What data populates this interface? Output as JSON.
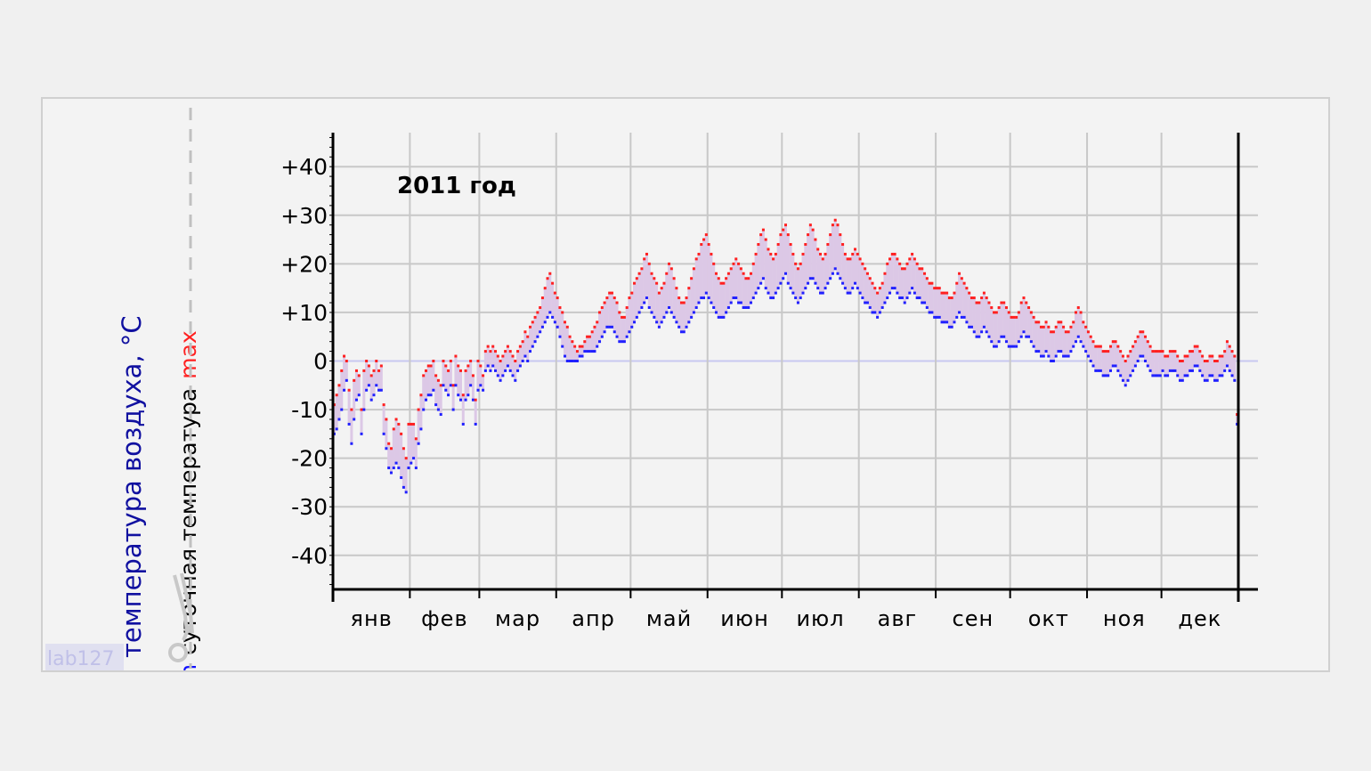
{
  "chart_data": {
    "type": "line",
    "title": "2011 год",
    "ylabel": "температура воздуха, °C",
    "ylabel_series_note": {
      "prefix": "суточная температура",
      "min_label": "min",
      "max_label": "max"
    },
    "ylim": [
      -47,
      47
    ],
    "yticks": [
      {
        "value": 40,
        "label": "+40"
      },
      {
        "value": 30,
        "label": "+30"
      },
      {
        "value": 20,
        "label": "+20"
      },
      {
        "value": 10,
        "label": "+10"
      },
      {
        "value": 0,
        "label": "0"
      },
      {
        "value": -10,
        "label": "-10"
      },
      {
        "value": -20,
        "label": "-20"
      },
      {
        "value": -30,
        "label": "-30"
      },
      {
        "value": -40,
        "label": "-40"
      }
    ],
    "months": [
      "янв",
      "фев",
      "мар",
      "апр",
      "май",
      "июн",
      "июл",
      "авг",
      "сен",
      "окт",
      "ноя",
      "дек"
    ],
    "month_lengths": [
      31,
      28,
      31,
      30,
      31,
      30,
      31,
      31,
      30,
      31,
      30,
      31
    ],
    "grid": true,
    "colors": {
      "max": "#ff2020",
      "min": "#2020ff",
      "band": "#dcc8e6",
      "grid": "#c8c8c8",
      "zero_line": "#c8c8f0"
    },
    "series": [
      {
        "name": "max",
        "daily": [
          -9,
          -7,
          -5,
          -2,
          1,
          0,
          -6,
          -10,
          -4,
          -2,
          -3,
          -10,
          -2,
          0,
          -1,
          -3,
          -2,
          0,
          -2,
          -1,
          -9,
          -12,
          -17,
          -18,
          -14,
          -12,
          -13,
          -15,
          -18,
          -20,
          -13,
          -13,
          -13,
          -16,
          -10,
          -7,
          -3,
          -2,
          -1,
          -1,
          0,
          -3,
          -4,
          -5,
          0,
          -1,
          -2,
          0,
          -5,
          1,
          -1,
          -2,
          -7,
          -2,
          -1,
          0,
          -3,
          -8,
          0,
          -1,
          -3,
          2,
          3,
          2,
          3,
          2,
          1,
          0,
          1,
          2,
          3,
          2,
          1,
          0,
          2,
          3,
          4,
          6,
          5,
          7,
          8,
          9,
          10,
          11,
          13,
          15,
          17,
          18,
          16,
          14,
          13,
          11,
          10,
          8,
          7,
          5,
          4,
          3,
          2,
          3,
          3,
          4,
          5,
          5,
          6,
          7,
          8,
          10,
          11,
          12,
          13,
          14,
          14,
          13,
          12,
          10,
          9,
          9,
          11,
          13,
          14,
          16,
          17,
          18,
          19,
          21,
          22,
          20,
          18,
          17,
          16,
          14,
          15,
          16,
          18,
          20,
          19,
          17,
          15,
          13,
          12,
          12,
          13,
          15,
          17,
          19,
          21,
          22,
          24,
          25,
          26,
          24,
          22,
          20,
          18,
          17,
          16,
          16,
          17,
          18,
          19,
          20,
          21,
          20,
          19,
          18,
          17,
          17,
          18,
          20,
          22,
          24,
          26,
          27,
          25,
          23,
          22,
          21,
          22,
          24,
          26,
          27,
          28,
          26,
          24,
          22,
          20,
          19,
          20,
          22,
          24,
          26,
          28,
          27,
          25,
          23,
          22,
          21,
          22,
          24,
          26,
          28,
          29,
          28,
          26,
          24,
          22,
          21,
          21,
          22,
          23,
          22,
          21,
          20,
          19,
          18,
          17,
          16,
          15,
          14,
          15,
          16,
          18,
          20,
          21,
          22,
          22,
          21,
          20,
          19,
          19,
          20,
          21,
          22,
          21,
          20,
          19,
          19,
          18,
          17,
          16,
          16,
          15,
          15,
          15,
          14,
          14,
          14,
          13,
          13,
          14,
          16,
          18,
          17,
          16,
          15,
          14,
          13,
          13,
          12,
          12,
          13,
          14,
          13,
          12,
          11,
          10,
          10,
          11,
          12,
          12,
          11,
          10,
          9,
          9,
          9,
          10,
          12,
          13,
          12,
          11,
          10,
          9,
          8,
          8,
          7,
          7,
          8,
          7,
          6,
          6,
          7,
          8,
          8,
          7,
          6,
          6,
          7,
          8,
          10,
          11,
          10,
          8,
          7,
          6,
          5,
          4,
          3,
          3,
          3,
          2,
          2,
          2,
          3,
          4,
          4,
          3,
          2,
          1,
          0,
          1,
          2,
          3,
          4,
          5,
          6,
          6,
          5,
          4,
          3,
          2,
          2,
          2,
          2,
          2,
          1,
          1,
          2,
          2,
          2,
          1,
          0,
          0,
          1,
          1,
          2,
          2,
          3,
          3,
          2,
          1,
          0,
          0,
          1,
          1,
          0,
          0,
          1,
          1,
          2,
          4,
          3,
          2,
          1,
          -11
        ]
      },
      {
        "name": "min",
        "daily": [
          -15,
          -14,
          -12,
          -10,
          -6,
          -4,
          -13,
          -17,
          -12,
          -8,
          -7,
          -15,
          -10,
          -6,
          -5,
          -8,
          -7,
          -5,
          -6,
          -6,
          -15,
          -18,
          -22,
          -23,
          -22,
          -21,
          -22,
          -24,
          -26,
          -27,
          -22,
          -21,
          -20,
          -22,
          -17,
          -14,
          -10,
          -8,
          -7,
          -7,
          -6,
          -9,
          -10,
          -11,
          -5,
          -6,
          -7,
          -5,
          -10,
          -5,
          -7,
          -8,
          -13,
          -8,
          -7,
          -5,
          -8,
          -13,
          -6,
          -5,
          -6,
          -2,
          -1,
          -2,
          -1,
          -2,
          -3,
          -4,
          -3,
          -2,
          -1,
          -2,
          -3,
          -4,
          -2,
          -1,
          0,
          1,
          0,
          2,
          3,
          4,
          5,
          6,
          7,
          8,
          9,
          10,
          9,
          8,
          7,
          5,
          3,
          1,
          0,
          0,
          0,
          0,
          0,
          1,
          1,
          2,
          2,
          2,
          2,
          2,
          3,
          4,
          5,
          6,
          7,
          7,
          7,
          6,
          5,
          4,
          4,
          4,
          5,
          6,
          7,
          8,
          9,
          10,
          11,
          12,
          13,
          11,
          10,
          9,
          8,
          7,
          8,
          9,
          10,
          11,
          10,
          9,
          8,
          7,
          6,
          6,
          7,
          8,
          9,
          10,
          11,
          12,
          13,
          13,
          14,
          13,
          12,
          11,
          10,
          9,
          9,
          9,
          10,
          11,
          12,
          13,
          13,
          12,
          12,
          11,
          11,
          11,
          12,
          13,
          14,
          15,
          16,
          17,
          15,
          14,
          13,
          13,
          14,
          15,
          16,
          17,
          18,
          16,
          15,
          14,
          13,
          12,
          13,
          14,
          15,
          16,
          17,
          17,
          16,
          15,
          14,
          14,
          15,
          16,
          17,
          18,
          19,
          18,
          17,
          16,
          15,
          14,
          14,
          15,
          16,
          15,
          14,
          13,
          12,
          12,
          11,
          10,
          10,
          9,
          10,
          11,
          12,
          13,
          14,
          15,
          15,
          14,
          13,
          13,
          12,
          13,
          14,
          15,
          14,
          13,
          13,
          12,
          12,
          11,
          10,
          10,
          9,
          9,
          9,
          8,
          8,
          8,
          7,
          7,
          8,
          9,
          10,
          9,
          9,
          8,
          7,
          7,
          6,
          5,
          5,
          6,
          7,
          6,
          5,
          4,
          3,
          3,
          4,
          5,
          5,
          4,
          3,
          3,
          3,
          3,
          4,
          5,
          6,
          5,
          5,
          4,
          3,
          2,
          2,
          1,
          1,
          2,
          1,
          0,
          0,
          1,
          2,
          2,
          1,
          1,
          1,
          2,
          3,
          4,
          5,
          4,
          3,
          2,
          1,
          0,
          -1,
          -2,
          -2,
          -2,
          -3,
          -3,
          -3,
          -2,
          -1,
          -1,
          -2,
          -3,
          -4,
          -5,
          -4,
          -3,
          -2,
          -1,
          0,
          1,
          1,
          0,
          -1,
          -2,
          -3,
          -3,
          -3,
          -3,
          -2,
          -3,
          -3,
          -2,
          -2,
          -2,
          -3,
          -4,
          -4,
          -3,
          -3,
          -2,
          -2,
          -1,
          -1,
          -2,
          -3,
          -4,
          -4,
          -3,
          -3,
          -4,
          -4,
          -3,
          -3,
          -2,
          -1,
          -2,
          -3,
          -4,
          -13
        ]
      }
    ]
  },
  "watermark": "lab127"
}
